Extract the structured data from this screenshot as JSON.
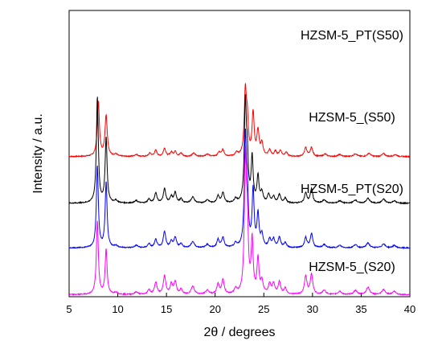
{
  "chart_data": {
    "type": "line",
    "xlabel": "2θ / degrees",
    "ylabel": "Intensity / a.u.",
    "xlim": [
      5,
      40
    ],
    "xticks": [
      5,
      10,
      15,
      20,
      25,
      30,
      35,
      40
    ],
    "grid": false,
    "yticks_shown": false,
    "series": [
      {
        "name": "HZSM-5_PT(S50)",
        "color": "#ff0000",
        "baseline": 3.45,
        "peaks": [
          [
            8.0,
            1.35,
            0.13
          ],
          [
            8.8,
            1.0,
            0.14
          ],
          [
            9.8,
            0.05,
            0.2
          ],
          [
            11.9,
            0.05,
            0.2
          ],
          [
            13.3,
            0.08,
            0.15
          ],
          [
            13.9,
            0.15,
            0.15
          ],
          [
            14.8,
            0.2,
            0.15
          ],
          [
            15.5,
            0.1,
            0.15
          ],
          [
            15.9,
            0.12,
            0.15
          ],
          [
            16.5,
            0.08,
            0.15
          ],
          [
            17.8,
            0.08,
            0.2
          ],
          [
            19.2,
            0.06,
            0.2
          ],
          [
            20.4,
            0.1,
            0.15
          ],
          [
            20.8,
            0.16,
            0.15
          ],
          [
            22.2,
            0.08,
            0.15
          ],
          [
            23.1,
            1.55,
            0.13
          ],
          [
            23.3,
            0.8,
            0.12
          ],
          [
            23.9,
            1.05,
            0.13
          ],
          [
            24.4,
            0.6,
            0.13
          ],
          [
            24.8,
            0.3,
            0.15
          ],
          [
            25.6,
            0.15,
            0.15
          ],
          [
            26.2,
            0.12,
            0.15
          ],
          [
            26.7,
            0.14,
            0.15
          ],
          [
            27.3,
            0.1,
            0.15
          ],
          [
            29.3,
            0.22,
            0.15
          ],
          [
            29.9,
            0.22,
            0.15
          ],
          [
            31.3,
            0.06,
            0.2
          ],
          [
            32.8,
            0.05,
            0.2
          ],
          [
            34.4,
            0.07,
            0.2
          ],
          [
            35.8,
            0.08,
            0.2
          ],
          [
            37.3,
            0.07,
            0.2
          ],
          [
            38.5,
            0.05,
            0.2
          ]
        ]
      },
      {
        "name": "HZSM-5_(S50)",
        "color": "#000000",
        "baseline": 2.3,
        "peaks": [
          [
            7.9,
            2.6,
            0.12
          ],
          [
            8.8,
            1.6,
            0.12
          ],
          [
            9.8,
            0.06,
            0.2
          ],
          [
            11.9,
            0.06,
            0.2
          ],
          [
            13.2,
            0.1,
            0.15
          ],
          [
            13.9,
            0.25,
            0.15
          ],
          [
            14.8,
            0.35,
            0.15
          ],
          [
            15.5,
            0.15,
            0.15
          ],
          [
            15.9,
            0.25,
            0.15
          ],
          [
            16.5,
            0.1,
            0.15
          ],
          [
            17.7,
            0.15,
            0.2
          ],
          [
            19.2,
            0.08,
            0.2
          ],
          [
            20.3,
            0.18,
            0.15
          ],
          [
            20.8,
            0.25,
            0.15
          ],
          [
            22.1,
            0.1,
            0.15
          ],
          [
            23.1,
            2.4,
            0.12
          ],
          [
            23.3,
            1.0,
            0.12
          ],
          [
            23.8,
            1.1,
            0.12
          ],
          [
            24.4,
            0.65,
            0.12
          ],
          [
            24.8,
            0.25,
            0.15
          ],
          [
            25.5,
            0.2,
            0.15
          ],
          [
            26.0,
            0.15,
            0.15
          ],
          [
            26.6,
            0.2,
            0.15
          ],
          [
            27.2,
            0.12,
            0.15
          ],
          [
            29.3,
            0.25,
            0.15
          ],
          [
            29.9,
            0.35,
            0.15
          ],
          [
            31.2,
            0.08,
            0.2
          ],
          [
            32.8,
            0.06,
            0.2
          ],
          [
            34.4,
            0.08,
            0.2
          ],
          [
            35.7,
            0.12,
            0.2
          ],
          [
            37.3,
            0.1,
            0.2
          ],
          [
            38.4,
            0.06,
            0.2
          ]
        ]
      },
      {
        "name": "HZSM-5_PT(S20)",
        "color": "#0000ff",
        "baseline": 1.2,
        "peaks": [
          [
            7.9,
            2.0,
            0.12
          ],
          [
            8.8,
            1.6,
            0.12
          ],
          [
            9.8,
            0.05,
            0.2
          ],
          [
            11.9,
            0.06,
            0.2
          ],
          [
            13.2,
            0.1,
            0.15
          ],
          [
            13.9,
            0.2,
            0.15
          ],
          [
            14.8,
            0.4,
            0.15
          ],
          [
            15.5,
            0.15,
            0.15
          ],
          [
            15.9,
            0.25,
            0.15
          ],
          [
            16.5,
            0.1,
            0.15
          ],
          [
            17.7,
            0.15,
            0.2
          ],
          [
            19.2,
            0.08,
            0.2
          ],
          [
            20.3,
            0.2,
            0.15
          ],
          [
            20.8,
            0.25,
            0.15
          ],
          [
            22.1,
            0.1,
            0.15
          ],
          [
            23.1,
            2.6,
            0.12
          ],
          [
            23.3,
            1.2,
            0.12
          ],
          [
            23.9,
            1.4,
            0.12
          ],
          [
            24.4,
            0.8,
            0.12
          ],
          [
            24.8,
            0.3,
            0.15
          ],
          [
            25.6,
            0.2,
            0.15
          ],
          [
            26.0,
            0.2,
            0.15
          ],
          [
            26.6,
            0.25,
            0.15
          ],
          [
            27.2,
            0.12,
            0.15
          ],
          [
            29.3,
            0.25,
            0.15
          ],
          [
            29.9,
            0.35,
            0.15
          ],
          [
            31.2,
            0.08,
            0.2
          ],
          [
            32.8,
            0.06,
            0.2
          ],
          [
            34.4,
            0.08,
            0.2
          ],
          [
            35.7,
            0.12,
            0.2
          ],
          [
            37.3,
            0.1,
            0.2
          ],
          [
            38.4,
            0.06,
            0.2
          ]
        ]
      },
      {
        "name": "HZSM-5_(S20)",
        "color": "#ff00ff",
        "baseline": 0.05,
        "peaks": [
          [
            7.9,
            1.8,
            0.12
          ],
          [
            8.8,
            1.1,
            0.12
          ],
          [
            9.8,
            0.05,
            0.2
          ],
          [
            11.9,
            0.06,
            0.2
          ],
          [
            13.2,
            0.12,
            0.15
          ],
          [
            13.9,
            0.3,
            0.15
          ],
          [
            14.8,
            0.45,
            0.15
          ],
          [
            15.5,
            0.25,
            0.15
          ],
          [
            15.9,
            0.3,
            0.15
          ],
          [
            16.5,
            0.12,
            0.15
          ],
          [
            17.7,
            0.2,
            0.2
          ],
          [
            19.2,
            0.1,
            0.2
          ],
          [
            20.3,
            0.25,
            0.15
          ],
          [
            20.8,
            0.35,
            0.15
          ],
          [
            22.1,
            0.12,
            0.15
          ],
          [
            23.1,
            3.2,
            0.12
          ],
          [
            23.3,
            1.6,
            0.12
          ],
          [
            23.8,
            1.3,
            0.12
          ],
          [
            24.4,
            0.85,
            0.12
          ],
          [
            24.8,
            0.3,
            0.15
          ],
          [
            25.6,
            0.25,
            0.15
          ],
          [
            26.0,
            0.25,
            0.15
          ],
          [
            26.6,
            0.3,
            0.15
          ],
          [
            27.2,
            0.15,
            0.15
          ],
          [
            29.3,
            0.45,
            0.15
          ],
          [
            29.9,
            0.5,
            0.15
          ],
          [
            31.2,
            0.1,
            0.2
          ],
          [
            32.8,
            0.08,
            0.2
          ],
          [
            34.4,
            0.1,
            0.2
          ],
          [
            35.7,
            0.18,
            0.2
          ],
          [
            37.3,
            0.12,
            0.2
          ],
          [
            38.4,
            0.08,
            0.2
          ]
        ]
      }
    ]
  }
}
